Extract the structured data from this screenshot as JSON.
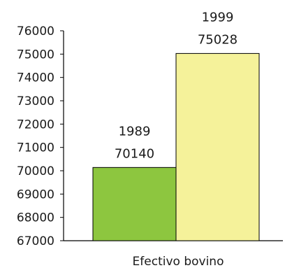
{
  "chart_data": {
    "type": "bar",
    "title": "",
    "xlabel": "",
    "ylabel": "",
    "categories": [
      "Efectivo bovino"
    ],
    "series": [
      {
        "label_year": "1989",
        "label_value": "70140",
        "value": 70140,
        "color": "#8dc63f"
      },
      {
        "label_year": "1999",
        "label_value": "75028",
        "value": 75028,
        "color": "#f5f29a"
      }
    ],
    "ylim": [
      67000,
      76000
    ],
    "yticks": [
      67000,
      68000,
      69000,
      70000,
      71000,
      72000,
      73000,
      74000,
      75000,
      76000
    ],
    "grid": false,
    "legend": "none"
  }
}
